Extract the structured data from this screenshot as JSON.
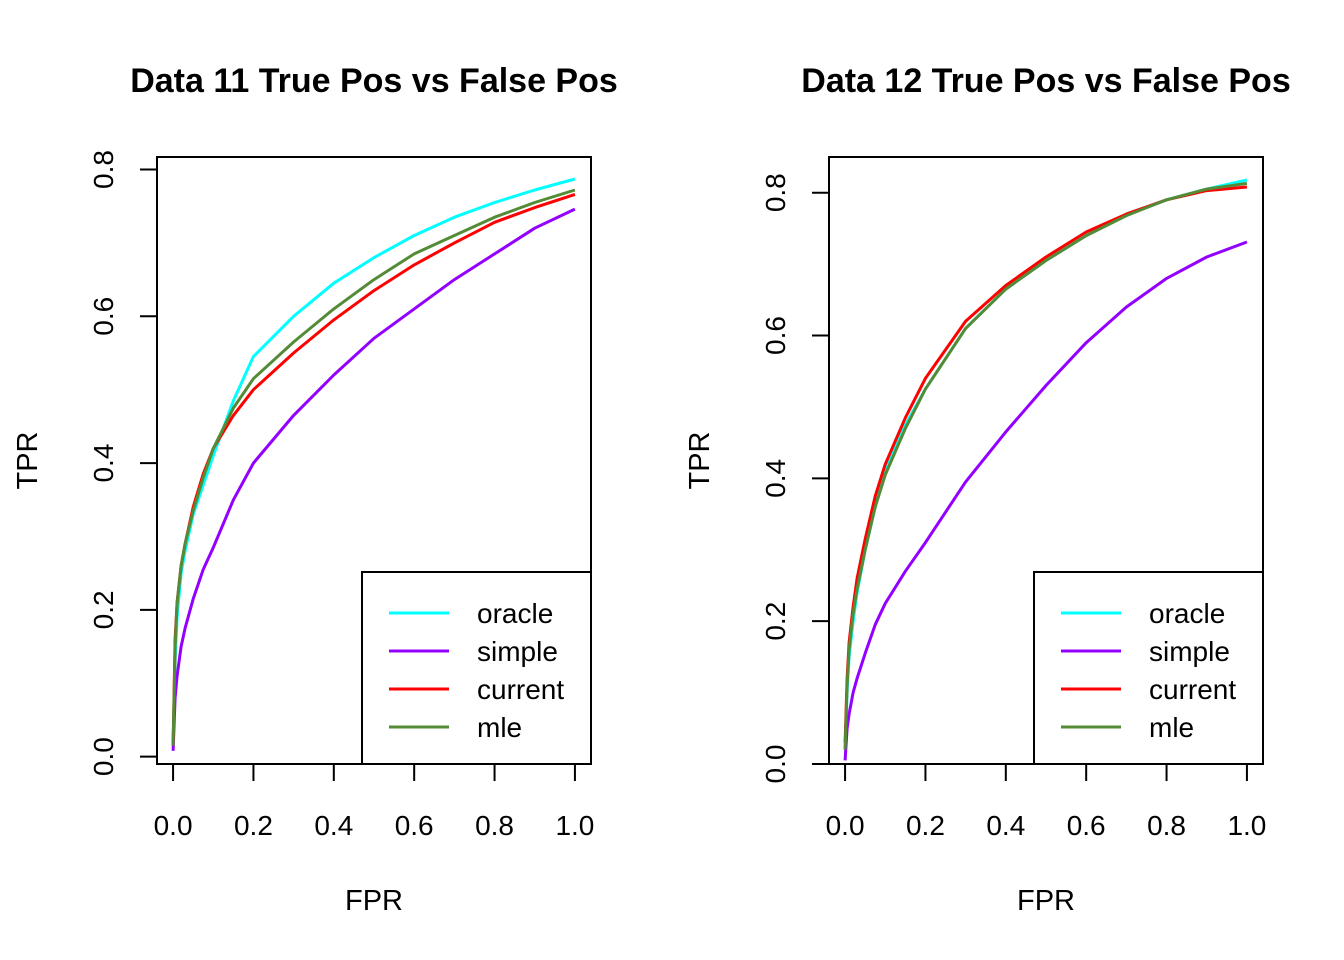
{
  "chart_data": [
    {
      "type": "line",
      "title": "Data 11 True Pos vs False Pos",
      "xlabel": "FPR",
      "ylabel": "TPR",
      "xlim": [
        -0.04,
        1.04
      ],
      "ylim": [
        -0.01,
        0.817
      ],
      "xticks": [
        0.0,
        0.2,
        0.4,
        0.6,
        0.8,
        1.0
      ],
      "xtick_labels": [
        "0.0",
        "0.2",
        "0.4",
        "0.6",
        "0.8",
        "1.0"
      ],
      "yticks": [
        0.0,
        0.2,
        0.4,
        0.6,
        0.8
      ],
      "ytick_labels": [
        "0.0",
        "0.2",
        "0.4",
        "0.6",
        "0.8"
      ],
      "legend_position": "bottom-right",
      "series": [
        {
          "name": "oracle",
          "color": "#00FFFF",
          "x": [
            0,
            0.005,
            0.01,
            0.02,
            0.03,
            0.05,
            0.075,
            0.1,
            0.15,
            0.2,
            0.3,
            0.4,
            0.5,
            0.6,
            0.7,
            0.8,
            0.9,
            1.0
          ],
          "y": [
            0.015,
            0.13,
            0.19,
            0.25,
            0.28,
            0.33,
            0.37,
            0.41,
            0.485,
            0.545,
            0.6,
            0.645,
            0.68,
            0.71,
            0.735,
            0.755,
            0.772,
            0.787
          ]
        },
        {
          "name": "simple",
          "color": "#9400FF",
          "x": [
            0,
            0.005,
            0.01,
            0.02,
            0.03,
            0.05,
            0.075,
            0.1,
            0.15,
            0.2,
            0.3,
            0.4,
            0.5,
            0.6,
            0.7,
            0.8,
            0.9,
            1.0
          ],
          "y": [
            0.008,
            0.08,
            0.11,
            0.15,
            0.175,
            0.215,
            0.255,
            0.285,
            0.35,
            0.4,
            0.465,
            0.52,
            0.57,
            0.61,
            0.65,
            0.685,
            0.72,
            0.746
          ]
        },
        {
          "name": "current",
          "color": "#FF0000",
          "x": [
            0,
            0.005,
            0.01,
            0.02,
            0.03,
            0.05,
            0.075,
            0.1,
            0.15,
            0.2,
            0.3,
            0.4,
            0.5,
            0.6,
            0.7,
            0.8,
            0.9,
            1.0
          ],
          "y": [
            0.015,
            0.16,
            0.21,
            0.26,
            0.29,
            0.34,
            0.385,
            0.42,
            0.465,
            0.5,
            0.55,
            0.595,
            0.635,
            0.67,
            0.7,
            0.728,
            0.748,
            0.766
          ]
        },
        {
          "name": "mle",
          "color": "#548B36",
          "x": [
            0,
            0.005,
            0.01,
            0.02,
            0.03,
            0.05,
            0.075,
            0.1,
            0.15,
            0.2,
            0.3,
            0.4,
            0.5,
            0.6,
            0.7,
            0.8,
            0.9,
            1.0
          ],
          "y": [
            0.015,
            0.15,
            0.21,
            0.26,
            0.29,
            0.335,
            0.38,
            0.42,
            0.475,
            0.515,
            0.565,
            0.61,
            0.65,
            0.685,
            0.71,
            0.735,
            0.755,
            0.772
          ]
        }
      ]
    },
    {
      "type": "line",
      "title": "Data 12 True Pos vs False Pos",
      "xlabel": "FPR",
      "ylabel": "TPR",
      "xlim": [
        -0.04,
        1.04
      ],
      "ylim": [
        0.0,
        0.85
      ],
      "xticks": [
        0.0,
        0.2,
        0.4,
        0.6,
        0.8,
        1.0
      ],
      "xtick_labels": [
        "0.0",
        "0.2",
        "0.4",
        "0.6",
        "0.8",
        "1.0"
      ],
      "yticks": [
        0.0,
        0.2,
        0.4,
        0.6,
        0.8
      ],
      "ytick_labels": [
        "0.0",
        "0.2",
        "0.4",
        "0.6",
        "0.8"
      ],
      "legend_position": "bottom-right",
      "series": [
        {
          "name": "oracle",
          "color": "#00FFFF",
          "x": [
            0,
            0.005,
            0.01,
            0.02,
            0.03,
            0.05,
            0.075,
            0.1,
            0.15,
            0.2,
            0.3,
            0.4,
            0.5,
            0.6,
            0.7,
            0.8,
            0.9,
            1.0
          ],
          "y": [
            0.02,
            0.1,
            0.15,
            0.2,
            0.24,
            0.3,
            0.36,
            0.41,
            0.475,
            0.525,
            0.61,
            0.665,
            0.705,
            0.74,
            0.77,
            0.79,
            0.805,
            0.818
          ]
        },
        {
          "name": "simple",
          "color": "#9400FF",
          "x": [
            0,
            0.005,
            0.01,
            0.02,
            0.03,
            0.05,
            0.075,
            0.1,
            0.15,
            0.2,
            0.3,
            0.4,
            0.5,
            0.6,
            0.7,
            0.8,
            0.9,
            1.0
          ],
          "y": [
            0.005,
            0.05,
            0.07,
            0.1,
            0.12,
            0.155,
            0.195,
            0.225,
            0.27,
            0.31,
            0.395,
            0.465,
            0.53,
            0.59,
            0.64,
            0.68,
            0.71,
            0.731
          ]
        },
        {
          "name": "current",
          "color": "#FF0000",
          "x": [
            0,
            0.005,
            0.01,
            0.02,
            0.03,
            0.05,
            0.075,
            0.1,
            0.15,
            0.2,
            0.3,
            0.4,
            0.5,
            0.6,
            0.7,
            0.8,
            0.9,
            1.0
          ],
          "y": [
            0.03,
            0.12,
            0.17,
            0.22,
            0.26,
            0.315,
            0.375,
            0.42,
            0.485,
            0.54,
            0.62,
            0.67,
            0.71,
            0.745,
            0.77,
            0.79,
            0.803,
            0.808
          ]
        },
        {
          "name": "mle",
          "color": "#548B36",
          "x": [
            0,
            0.005,
            0.01,
            0.02,
            0.03,
            0.05,
            0.075,
            0.1,
            0.15,
            0.2,
            0.3,
            0.4,
            0.5,
            0.6,
            0.7,
            0.8,
            0.9,
            1.0
          ],
          "y": [
            0.02,
            0.11,
            0.16,
            0.21,
            0.245,
            0.3,
            0.36,
            0.405,
            0.47,
            0.525,
            0.61,
            0.665,
            0.705,
            0.74,
            0.768,
            0.79,
            0.805,
            0.813
          ]
        }
      ]
    }
  ]
}
